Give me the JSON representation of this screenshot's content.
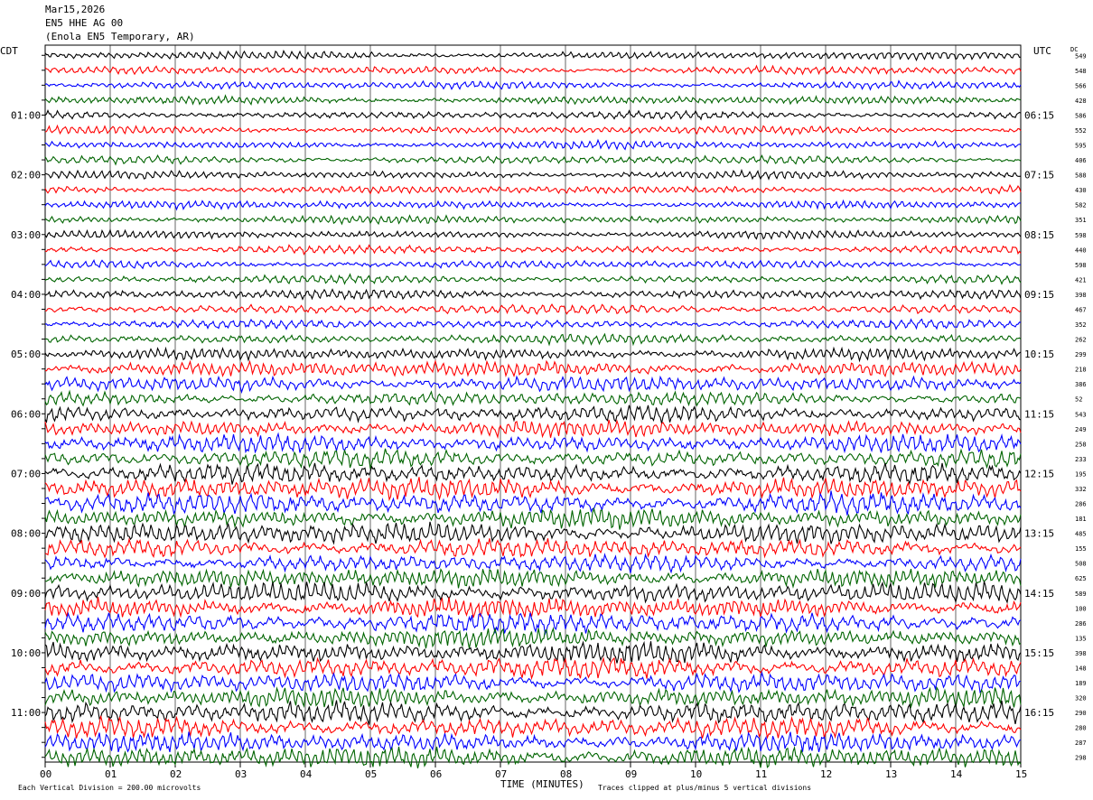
{
  "header": {
    "date": "Mar15,2026",
    "channel": "EN5 HHE AG 00",
    "station": "(Enola EN5 Temporary, AR)"
  },
  "axes": {
    "left_timezone": "CDT",
    "right_timezone": "UTC",
    "right_corner_label": "DC",
    "xlabel": "TIME (MINUTES)"
  },
  "footer": {
    "scale_note": "Each Vertical Division =  200.00 microvolts",
    "clip_note": "Traces clipped at plus/minus 5 vertical divisions"
  },
  "chart_data": {
    "type": "line",
    "title": "",
    "x_ticks": [
      "00",
      "01",
      "02",
      "03",
      "04",
      "05",
      "06",
      "07",
      "08",
      "09",
      "10",
      "11",
      "12",
      "13",
      "14",
      "15"
    ],
    "xlim": [
      0,
      15
    ],
    "grid": true,
    "trace_colors": [
      "#000000",
      "#ff0000",
      "#0000ff",
      "#006400"
    ],
    "left_hour_labels": [
      "01:00",
      "02:00",
      "03:00",
      "04:00",
      "05:00",
      "06:00",
      "07:00",
      "08:00",
      "09:00",
      "10:00",
      "11:00"
    ],
    "right_hour_labels": [
      "06:15",
      "07:15",
      "08:15",
      "09:15",
      "10:15",
      "11:15",
      "12:15",
      "13:15",
      "14:15",
      "15:15",
      "16:15"
    ],
    "dc_offsets": [
      "549",
      "548",
      "566",
      "428",
      "586",
      "552",
      "595",
      "406",
      "588",
      "430",
      "582",
      "351",
      "598",
      "440",
      "598",
      "421",
      "398",
      "467",
      "352",
      "262",
      "299",
      "218",
      "386",
      "52",
      "543",
      "249",
      "258",
      "233",
      "195",
      "332",
      "286",
      "181",
      "485",
      "155",
      "508",
      "625",
      "589",
      "100",
      "286",
      "135",
      "398",
      "148",
      "189",
      "320",
      "290",
      "280",
      "287",
      "298"
    ],
    "trace_activity": [
      1,
      1,
      1,
      1,
      1,
      1,
      1,
      1,
      1,
      1,
      1,
      1,
      1,
      1,
      1,
      1,
      1.2,
      1.2,
      1.1,
      1.2,
      1.4,
      1.8,
      1.8,
      1.6,
      1.9,
      1.9,
      2,
      2,
      2.2,
      2.4,
      2.4,
      2.2,
      2.4,
      2.2,
      2,
      2.2,
      2.3,
      2.3,
      2.4,
      2.2,
      2.4,
      2.4,
      2.2,
      2.2,
      2.4,
      2.3,
      2.2,
      2.4
    ]
  }
}
